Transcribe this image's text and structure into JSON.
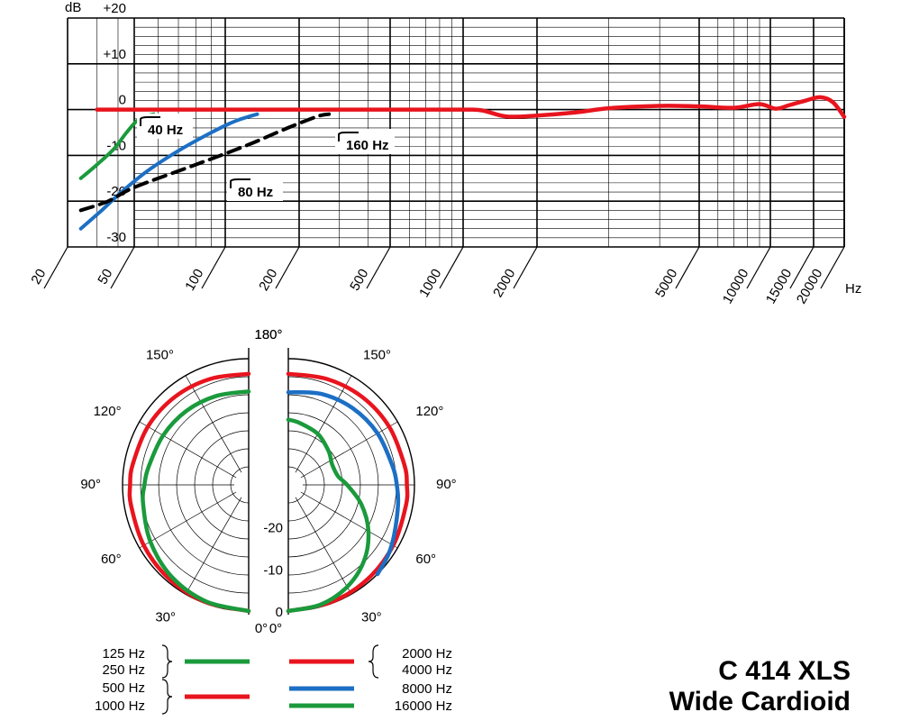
{
  "product": {
    "model": "C 414 XLS",
    "pattern": "Wide Cardioid"
  },
  "colors": {
    "green": "#1a9a3c",
    "blue": "#1c6fc4",
    "red": "#e8141e",
    "black": "#000000",
    "grid": "#000000"
  },
  "chart_data": [
    {
      "type": "line",
      "title": "",
      "xlabel": "Hz",
      "ylabel": "dB",
      "xscale": "log",
      "xlim": [
        20,
        20000
      ],
      "ylim": [
        -30,
        20
      ],
      "x_ticks": [
        20,
        50,
        100,
        200,
        500,
        1000,
        2000,
        5000,
        10000,
        15000,
        20000
      ],
      "x_tick_labels": [
        "20",
        "50",
        "100",
        "200",
        "500",
        "1000",
        "2000",
        "5000",
        "10000",
        "15000",
        "20000"
      ],
      "y_ticks": [
        20,
        10,
        0,
        -10,
        -20,
        -30
      ],
      "y_tick_labels": [
        "+20",
        "+10",
        "0",
        "-10",
        "-20",
        "-30"
      ],
      "grid": true,
      "annotations": [
        "40 Hz",
        "80 Hz",
        "160 Hz"
      ],
      "series": [
        {
          "color": "green",
          "style": "dashed-to-solid",
          "x": [
            24,
            30,
            38,
            45,
            52,
            58
          ],
          "y": [
            -15,
            -12,
            -8.5,
            -5,
            -2,
            -1
          ]
        },
        {
          "color": "blue",
          "style": "solid",
          "x": [
            24,
            32,
            42,
            55,
            70,
            90,
            110,
            135
          ],
          "y": [
            -26,
            -22,
            -18,
            -13.5,
            -9,
            -5,
            -2.5,
            -1
          ]
        },
        {
          "color": "black",
          "style": "dashed",
          "x": [
            24,
            35,
            50,
            80,
            120,
            180,
            240,
            270
          ],
          "y": [
            -22,
            -20,
            -17,
            -12,
            -8,
            -4,
            -1.5,
            -1
          ]
        },
        {
          "color": "red",
          "style": "solid",
          "x": [
            30,
            100,
            500,
            1000,
            1200,
            1500,
            2000,
            2500,
            3000,
            4000,
            5000,
            7000,
            9000,
            10500,
            12000,
            14000,
            16000,
            18000,
            20000
          ],
          "y": [
            0,
            0,
            0,
            0,
            -0.2,
            -1.5,
            -1.3,
            -0.6,
            0.3,
            0.8,
            0.7,
            0.4,
            1.2,
            0.2,
            1.0,
            2.0,
            2.7,
            1.6,
            -1.6
          ]
        }
      ]
    },
    {
      "type": "polar",
      "title": "",
      "angle_labels_left": [
        "180°",
        "150°",
        "120°",
        "90°",
        "60°",
        "30°",
        "0°"
      ],
      "angle_labels_right": [
        "180°",
        "150°",
        "120°",
        "90°",
        "60°",
        "30°",
        "0°"
      ],
      "radial_labels": [
        "-20",
        "-10",
        "0"
      ],
      "rlim": [
        -30,
        0
      ],
      "left_half_legend": [
        {
          "labels": [
            "125 Hz",
            "250 Hz"
          ],
          "color": "green"
        },
        {
          "labels": [
            "500 Hz",
            "1000 Hz"
          ],
          "color": "red"
        }
      ],
      "right_half_legend": [
        {
          "labels": [
            "2000 Hz",
            "4000 Hz"
          ],
          "color": "red"
        },
        {
          "labels": [
            "8000 Hz"
          ],
          "color": "blue"
        },
        {
          "labels": [
            "16000 Hz"
          ],
          "color": "green"
        }
      ],
      "series": [
        {
          "half": "left",
          "color": "red",
          "angles": [
            0,
            20,
            40,
            60,
            80,
            90,
            100,
            120,
            140,
            160,
            180
          ],
          "levels": [
            0,
            -0.3,
            -0.7,
            -1.2,
            -1.6,
            -1.8,
            -2.0,
            -2.3,
            -2.7,
            -3.2,
            -3.6
          ]
        },
        {
          "half": "left",
          "color": "green",
          "angles": [
            0,
            20,
            40,
            60,
            80,
            90,
            100,
            120,
            140,
            160,
            180
          ],
          "levels": [
            0,
            -0.5,
            -1.5,
            -3.0,
            -4.5,
            -5.2,
            -5.8,
            -6.5,
            -7.0,
            -7.5,
            -7.8
          ]
        },
        {
          "half": "right",
          "color": "red",
          "angles": [
            0,
            20,
            40,
            60,
            80,
            90,
            100,
            120,
            140,
            160,
            180
          ],
          "levels": [
            0,
            -0.3,
            -0.7,
            -1.2,
            -1.6,
            -1.8,
            -2.0,
            -2.3,
            -2.7,
            -3.2,
            -3.6
          ]
        },
        {
          "half": "right",
          "color": "blue",
          "angles": [
            45,
            55,
            65,
            80,
            90,
            100,
            120,
            140,
            160,
            180
          ],
          "levels": [
            0,
            -1.0,
            -2.2,
            -3.5,
            -4.2,
            -4.8,
            -5.5,
            -6.2,
            -7.0,
            -8.0
          ]
        },
        {
          "half": "right",
          "color": "green",
          "angles": [
            0,
            15,
            30,
            45,
            60,
            75,
            90,
            100,
            115,
            130,
            150,
            170,
            180
          ],
          "levels": [
            0,
            -0.5,
            -2.0,
            -4.5,
            -8.0,
            -12.0,
            -16.0,
            -18.0,
            -18.5,
            -17.5,
            -16.0,
            -15.0,
            -14.5
          ]
        }
      ]
    }
  ]
}
